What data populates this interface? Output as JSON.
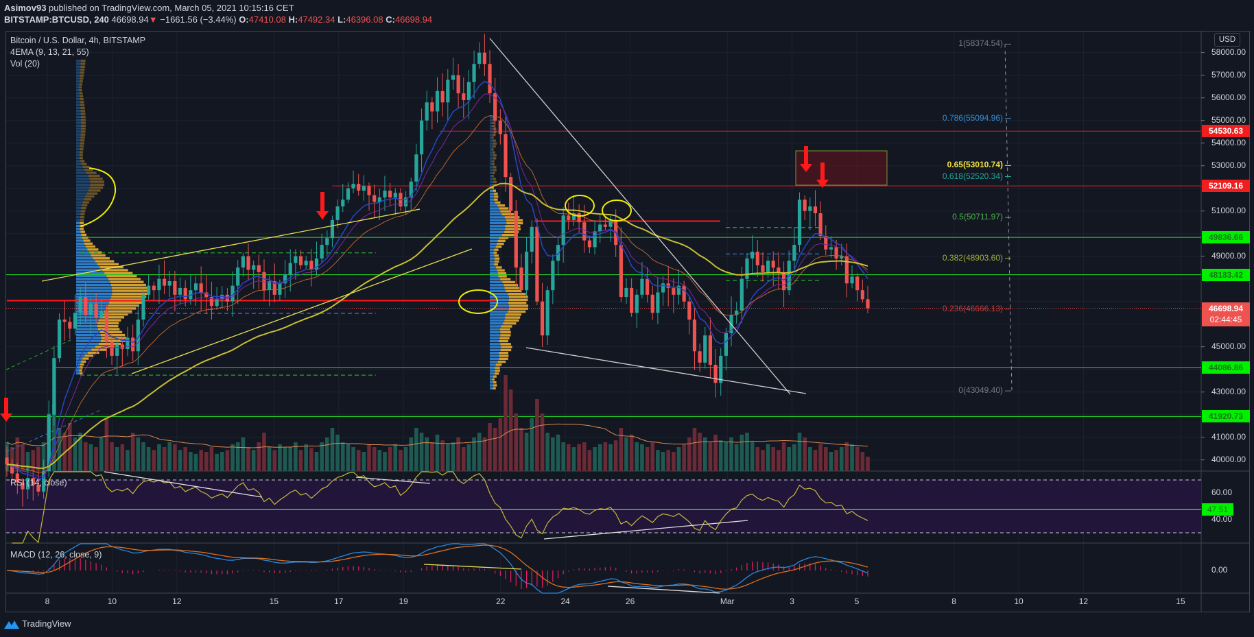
{
  "header": {
    "author": "Asimov93",
    "published": "published on TradingView.com, March 05, 2021 10:15:16 CET",
    "symbol": "BITSTAMP:BTCUSD, 240",
    "last": "46698.94",
    "change": "−1661.56 (−3.44%)",
    "o_label": "O:",
    "o": "47410.08",
    "h_label": "H:",
    "h": "47492.34",
    "l_label": "L:",
    "l": "46396.08",
    "c_label": "C:",
    "c": "46698.94",
    "down_icon": "triangle-down-icon"
  },
  "legend": {
    "title": "Bitcoin / U.S. Dollar, 4h, BITSTAMP",
    "ema": "4EMA (9, 13, 21, 55)",
    "vol": "Vol (20)",
    "rsi": "RSI (14, close)",
    "macd": "MACD (12, 26, close, 9)"
  },
  "price_axis": {
    "currency": "USD",
    "ticks": [
      "58000.00",
      "57000.00",
      "56000.00",
      "55000.00",
      "54000.00",
      "53000.00",
      "51000.00",
      "49000.00",
      "45000.00",
      "43000.00",
      "41000.00",
      "40000.00"
    ],
    "labels": [
      {
        "value": "54530.63",
        "bg": "#f01e1e",
        "fg": "#ffffff"
      },
      {
        "value": "52109.16",
        "bg": "#f01e1e",
        "fg": "#ffffff"
      },
      {
        "value": "49836.66",
        "bg": "#00f000",
        "fg": "#157a15"
      },
      {
        "value": "48183.42",
        "bg": "#00f000",
        "fg": "#157a15"
      },
      {
        "value": "44086.86",
        "bg": "#00f000",
        "fg": "#157a15"
      },
      {
        "value": "41920.73",
        "bg": "#00f000",
        "fg": "#157a15"
      }
    ],
    "last_price": "46698.94",
    "countdown": "02:44:45",
    "last_color": "#ef5350"
  },
  "fib": [
    {
      "label": "1(58374.54)",
      "price": 58374.54,
      "color": "#787b86"
    },
    {
      "label": "0.786(55094.96)",
      "price": 55094.96,
      "color": "#2f8fd8"
    },
    {
      "label": "0.65(53010.74)",
      "price": 53010.74,
      "color": "#f0e040",
      "bold": true
    },
    {
      "label": "0.618(52520.34)",
      "price": 52520.34,
      "color": "#26a69a"
    },
    {
      "label": "0.5(50711.97)",
      "price": 50711.97,
      "color": "#4caf50"
    },
    {
      "label": "0.382(48903.60)",
      "price": 48903.6,
      "color": "#9fb03a"
    },
    {
      "label": "0.236(46666.13)",
      "price": 46666.13,
      "color": "#c43a3a"
    },
    {
      "label": "0(43049.40)",
      "price": 43049.4,
      "color": "#787b86"
    }
  ],
  "rsi_axis": {
    "ticks": [
      "60.00",
      "40.00"
    ],
    "level": "47.51",
    "upper": 70,
    "lower": 30
  },
  "macd_axis": {
    "ticks": [
      "0.00"
    ]
  },
  "time_axis": [
    "8",
    "10",
    "12",
    "15",
    "17",
    "19",
    "22",
    "24",
    "26",
    "Mar",
    "3",
    "5",
    "8",
    "10",
    "12",
    "15"
  ],
  "brand": {
    "name": "TradingView",
    "icon": "tradingview-logo-icon"
  },
  "colors": {
    "up": "#26a69a",
    "down": "#ef5350",
    "ema9": "#2846c8",
    "ema13": "#7b2a9a",
    "ema21": "#b8652a",
    "ema55": "#c8c030",
    "volume_ma": "#d98a50",
    "rsi": "#c8b83a",
    "rsi_band": "#21163a",
    "macd": "#2a8ae0",
    "signal": "#e0701e",
    "hist": "#e91e63"
  },
  "chart_data": {
    "type": "candlestick",
    "interval": "4h",
    "indicators": [
      "EMA 9",
      "EMA 13",
      "EMA 21",
      "EMA 55",
      "Vol (20)",
      "RSI (14, close)",
      "MACD (12, 26, close, 9)"
    ],
    "ylim": [
      39200,
      58800
    ],
    "close": [
      39800,
      39400,
      39000,
      38700,
      39200,
      38900,
      38600,
      39500,
      42000,
      44500,
      46200,
      46100,
      45800,
      46500,
      47200,
      46400,
      46900,
      46300,
      46600,
      45200,
      44600,
      45100,
      44900,
      45400,
      44800,
      46200,
      47300,
      47700,
      47500,
      48000,
      47700,
      47900,
      47300,
      47600,
      47100,
      47500,
      47800,
      47400,
      47200,
      46800,
      47100,
      47300,
      47000,
      47700,
      48500,
      49000,
      48400,
      48600,
      48300,
      47500,
      47900,
      47300,
      47800,
      48200,
      48700,
      49000,
      48600,
      48800,
      48400,
      48900,
      49500,
      49800,
      50600,
      51200,
      51500,
      52000,
      52200,
      51900,
      52100,
      51700,
      51400,
      51600,
      51900,
      51600,
      51800,
      51200,
      51600,
      52300,
      53500,
      55000,
      55800,
      55400,
      56300,
      55800,
      56800,
      57000,
      56200,
      55900,
      56700,
      57500,
      58000,
      57500,
      56200,
      55000,
      54400,
      52500,
      51000,
      48500,
      47500,
      49200,
      50300,
      47000,
      45500,
      47500,
      48800,
      49500,
      50800,
      50600,
      50900,
      50500,
      49700,
      49400,
      50100,
      50400,
      50300,
      50600,
      49500,
      47200,
      47600,
      46500,
      47300,
      48000,
      47300,
      46500,
      47400,
      47800,
      47600,
      47300,
      47700,
      47000,
      46200,
      44800,
      44300,
      45500,
      44200,
      43400,
      44600,
      45600,
      46400,
      46600,
      48000,
      48900,
      49200,
      48600,
      48300,
      48800,
      48500,
      48300,
      47500,
      48800,
      49500,
      51500,
      51000,
      51200,
      50900,
      49900,
      49300,
      49400,
      48900,
      49000,
      47800,
      48100,
      47500,
      47100,
      46700
    ],
    "volume": [
      30,
      25,
      35,
      28,
      20,
      22,
      25,
      30,
      60,
      70,
      45,
      40,
      50,
      35,
      40,
      30,
      28,
      25,
      35,
      55,
      30,
      25,
      28,
      22,
      40,
      35,
      30,
      25,
      22,
      28,
      25,
      30,
      28,
      22,
      25,
      20,
      18,
      22,
      20,
      25,
      18,
      20,
      22,
      28,
      30,
      35,
      25,
      22,
      30,
      40,
      25,
      22,
      28,
      25,
      25,
      30,
      22,
      28,
      24,
      20,
      30,
      35,
      45,
      38,
      30,
      28,
      25,
      22,
      20,
      28,
      25,
      22,
      20,
      25,
      28,
      22,
      25,
      35,
      45,
      40,
      35,
      30,
      38,
      32,
      28,
      30,
      35,
      25,
      28,
      35,
      40,
      35,
      50,
      45,
      55,
      100,
      85,
      60,
      45,
      40,
      55,
      75,
      60,
      40,
      35,
      38,
      30,
      28,
      25,
      28,
      30,
      22,
      25,
      28,
      30,
      28,
      32,
      45,
      35,
      38,
      30,
      28,
      25,
      30,
      22,
      20,
      22,
      20,
      25,
      28,
      35,
      45,
      40,
      35,
      30,
      38,
      32,
      30,
      35,
      28,
      38,
      40,
      30,
      25,
      22,
      28,
      25,
      22,
      30,
      25,
      28,
      40,
      35,
      25,
      22,
      28,
      25,
      20,
      22,
      25,
      30,
      28,
      25,
      20,
      15
    ],
    "horizontal_levels": [
      54530.63,
      52109.16,
      49836.66,
      48183.42,
      44086.86,
      41920.73
    ],
    "last_price": 46698.94
  }
}
